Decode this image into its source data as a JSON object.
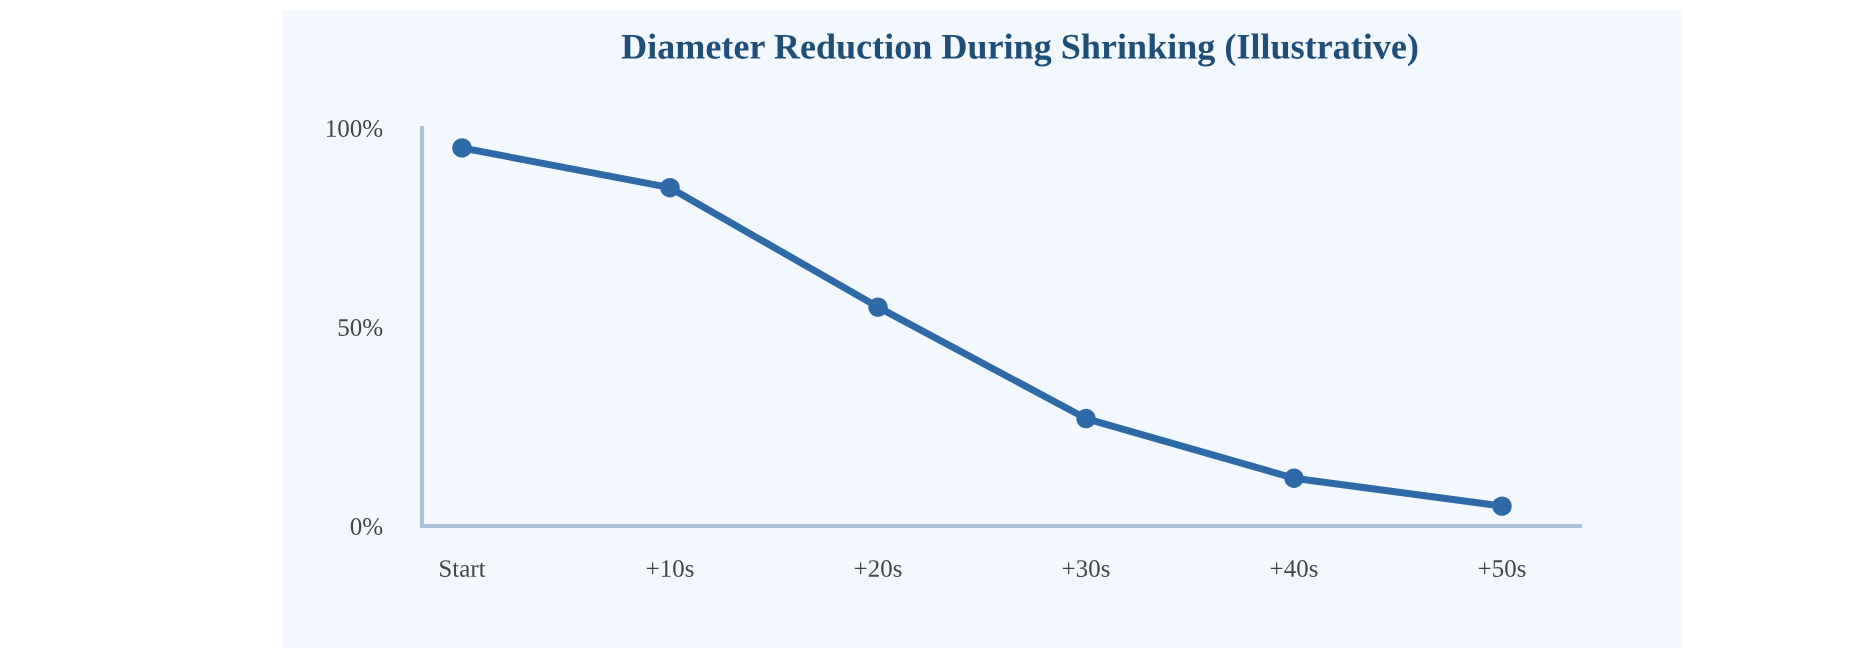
{
  "chart_data": {
    "type": "line",
    "title": "Diameter Reduction During Shrinking (Illustrative)",
    "categories": [
      "Start",
      "+10s",
      "+20s",
      "+30s",
      "+40s",
      "+50s"
    ],
    "series": [
      {
        "color": "#2e6aa8",
        "values": [
          95,
          85,
          55,
          27,
          12,
          5
        ]
      }
    ],
    "ylim": [
      0,
      100
    ],
    "yticks": [
      {
        "value": 0,
        "label": "0%"
      },
      {
        "value": 50,
        "label": "50%"
      },
      {
        "value": 100,
        "label": "100%"
      }
    ],
    "marker": "circle",
    "line_style": "solid"
  }
}
